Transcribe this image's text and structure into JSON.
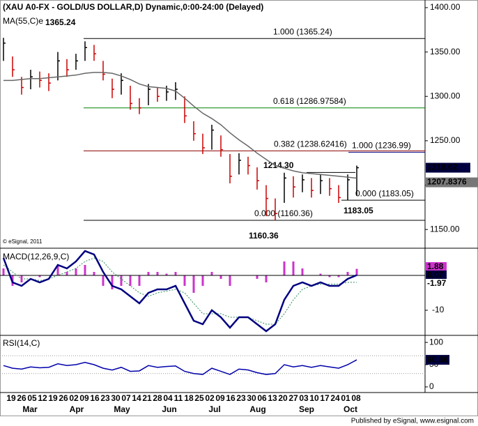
{
  "chart_data": [
    {
      "type": "ohlc",
      "title": "(XAU A0-FX - GOLD/US DOLLAR,D) Dynamic,0:00-24:00 (Delayed)",
      "copyright": "© eSignal, 2011",
      "close": [
        1360,
        1330,
        1310,
        1322,
        1318,
        1315,
        1340,
        1330,
        1340,
        1355,
        1348,
        1325,
        1308,
        1318,
        1292,
        1287,
        1308,
        1300,
        1305,
        1308,
        1278,
        1258,
        1242,
        1262,
        1240,
        1210,
        1228,
        1222,
        1205,
        1185,
        1168,
        1208,
        1198,
        1206,
        1194,
        1205,
        1196,
        1186,
        1206,
        1219.62
      ],
      "high": [
        1366,
        1345,
        1322,
        1330,
        1328,
        1326,
        1350,
        1342,
        1348,
        1362,
        1358,
        1340,
        1320,
        1326,
        1312,
        1298,
        1314,
        1310,
        1312,
        1316,
        1300,
        1272,
        1258,
        1268,
        1256,
        1235,
        1236,
        1232,
        1220,
        1200,
        1185,
        1214,
        1210,
        1212,
        1208,
        1212,
        1208,
        1200,
        1212,
        1222
      ],
      "low": [
        1340,
        1322,
        1302,
        1308,
        1310,
        1306,
        1318,
        1322,
        1330,
        1340,
        1340,
        1318,
        1298,
        1302,
        1285,
        1280,
        1290,
        1294,
        1295,
        1296,
        1270,
        1250,
        1235,
        1240,
        1232,
        1202,
        1212,
        1212,
        1195,
        1165,
        1160.36,
        1180,
        1186,
        1192,
        1186,
        1190,
        1188,
        1180,
        1183.05,
        1188
      ],
      "up_color": "#000000",
      "down_color": "#cc0000",
      "series": [
        {
          "name": "MA(55,C)e",
          "color": "#666666",
          "values": [
            1318,
            1318,
            1319,
            1320,
            1320,
            1321,
            1322,
            1323,
            1324,
            1326,
            1327,
            1327,
            1326,
            1323,
            1319,
            1314,
            1311,
            1310,
            1309,
            1306,
            1298,
            1289,
            1281,
            1275,
            1268,
            1259,
            1251,
            1244,
            1236,
            1229,
            1222,
            1219,
            1216,
            1214,
            1213,
            1212,
            1211,
            1210,
            1209,
            1207.8376
          ]
        }
      ],
      "ylim": [
        1129.7,
        1408.6
      ],
      "yticks": [
        {
          "value": 1150,
          "label": "1150.00"
        },
        {
          "value": 1200,
          "label": "1200.00"
        },
        {
          "value": 1250,
          "label": "1250.00"
        },
        {
          "value": 1300,
          "label": "1300.00"
        },
        {
          "value": 1350,
          "label": "1350.00"
        },
        {
          "value": 1400,
          "label": "1400.00"
        }
      ],
      "levels": [
        {
          "label": "1.000 (1365.24)",
          "value": 1365.24,
          "color": "#000000"
        },
        {
          "label": "0.618 (1286.97584)",
          "value": 1286.97584,
          "color": "#008000"
        },
        {
          "label": "0.382 (1238.62416)",
          "value": 1238.62416,
          "color": "#8b0000"
        },
        {
          "label": "0.000 (1160.36)",
          "value": 1160.36,
          "color": "#000000"
        },
        {
          "label": "1.000 (1236.99)",
          "value": 1236.99,
          "color": "#000080"
        },
        {
          "label": "0.000 (1183.05)",
          "value": 1183.05,
          "color": "#000000"
        }
      ],
      "annotations": [
        "1365.24",
        "1160.36",
        "1214.30",
        "1183.05"
      ]
    },
    {
      "type": "macd",
      "title": "MACD(12,26,9,C)",
      "series": [
        {
          "color": "#000080",
          "values": [
            5,
            -2,
            -3,
            -1,
            -2,
            -1,
            3,
            2,
            4,
            7,
            6,
            1,
            -3,
            -4,
            -6,
            -8,
            -5,
            -4,
            -4,
            -3,
            -8,
            -13,
            -14,
            -10,
            -12,
            -15,
            -12,
            -12,
            -14,
            -16,
            -14,
            -7,
            -3,
            -2,
            -3,
            -2,
            -3,
            -3,
            -1,
            0.07
          ]
        },
        {
          "color": "#2e8b57",
          "values": [
            3,
            1,
            -1,
            -1,
            -1.5,
            -1,
            0,
            1,
            2,
            4,
            5,
            4,
            1,
            -1,
            -3,
            -5,
            -6,
            -5,
            -4.5,
            -4,
            -5,
            -8,
            -11,
            -11,
            -11,
            -12,
            -12,
            -12,
            -13,
            -14,
            -14,
            -11,
            -7,
            -4,
            -3,
            -2.5,
            -2.5,
            -2.5,
            -2,
            -1.97
          ]
        },
        {
          "color": "#cc33cc",
          "values": [
            2,
            -3,
            -2,
            0,
            -0.5,
            0,
            3,
            1,
            2,
            3,
            1,
            -3,
            -4,
            -3,
            -3,
            -3,
            1,
            1,
            0.5,
            1,
            -3,
            -5,
            -3,
            1,
            -1,
            -3,
            0,
            0,
            -1,
            -2,
            0,
            4,
            4,
            2,
            0,
            0.5,
            -0.5,
            -0.5,
            1,
            1.88
          ]
        }
      ],
      "ylim": [
        -17,
        7.6
      ],
      "yticks": [
        -10
      ]
    },
    {
      "type": "line",
      "title": "RSI(14,C)",
      "series": [
        {
          "color": "#0000aa",
          "values": [
            48,
            42,
            40,
            45,
            43,
            44,
            52,
            48,
            50,
            55,
            50,
            42,
            38,
            44,
            35,
            36,
            48,
            44,
            46,
            47,
            35,
            30,
            28,
            42,
            35,
            28,
            40,
            38,
            32,
            28,
            30,
            50,
            45,
            48,
            44,
            48,
            45,
            42,
            50,
            60.86
          ]
        }
      ],
      "guides": [
        70,
        30
      ],
      "ylim": [
        -11.1,
        114.3
      ],
      "yticks": [
        0,
        50,
        100
      ]
    }
  ],
  "time_axis": {
    "days": [
      "19",
      "26",
      "05",
      "12",
      "19",
      "26",
      "02",
      "09",
      "16",
      "23",
      "30",
      "07",
      "14",
      "21",
      "28",
      "04",
      "11",
      "18",
      "25",
      "02",
      "09",
      "16",
      "23",
      "30",
      "06",
      "13",
      "20",
      "27",
      "03",
      "10",
      "17",
      "24",
      "01",
      "08"
    ],
    "months": [
      "Mar",
      "Apr",
      "May",
      "Jun",
      "Jul",
      "Aug",
      "Sep",
      "Oct"
    ]
  },
  "footer": "Published by eSignal, www.esignal.com"
}
